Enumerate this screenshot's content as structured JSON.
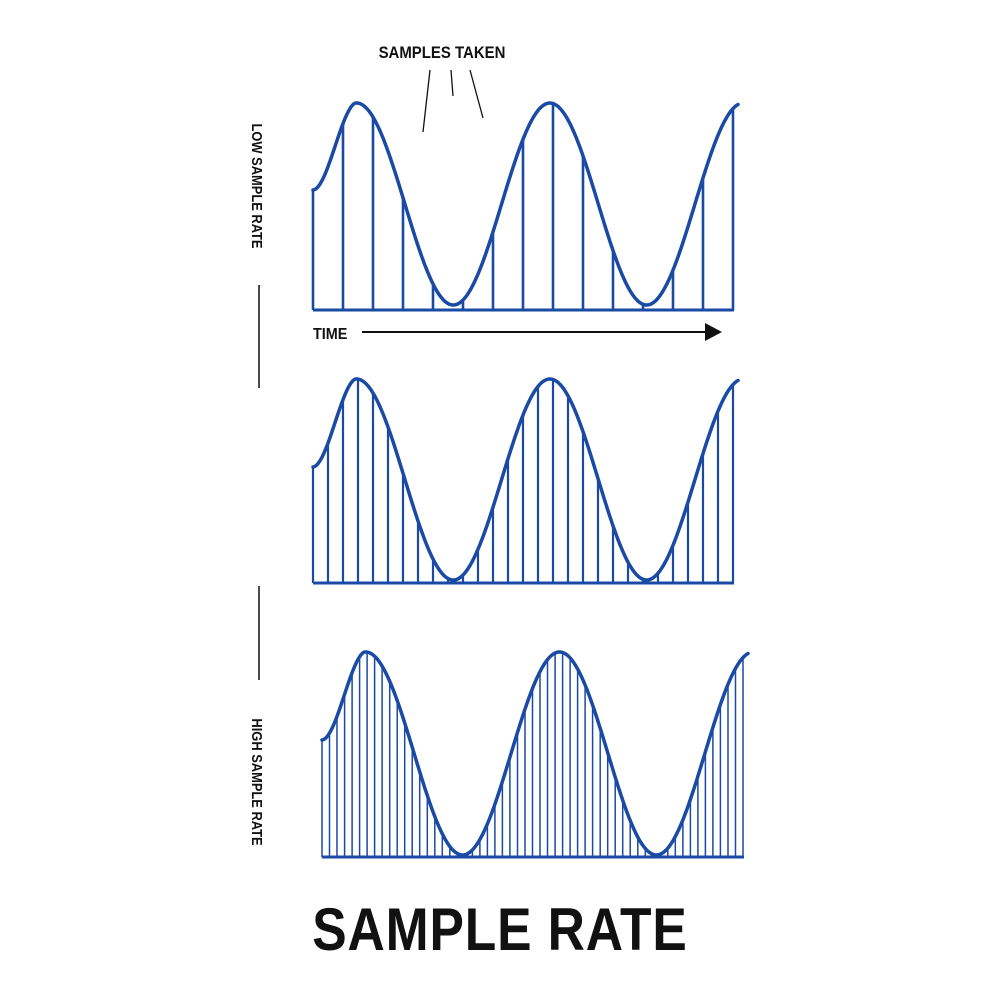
{
  "diagram": {
    "title": "SAMPLE RATE",
    "annotation": "SAMPLES TAKEN",
    "time_label": "TIME",
    "low_label": "LOW  SAMPLE RATE",
    "high_label": "HIGH SAMPLE RATE",
    "panels": [
      {
        "id": "low",
        "sample_count": 15
      },
      {
        "id": "medium",
        "sample_count": 29
      },
      {
        "id": "high",
        "sample_count": 57
      }
    ],
    "colors": {
      "wave": "#1a4aa3",
      "ink": "#111111",
      "background": "#ffffff"
    }
  }
}
